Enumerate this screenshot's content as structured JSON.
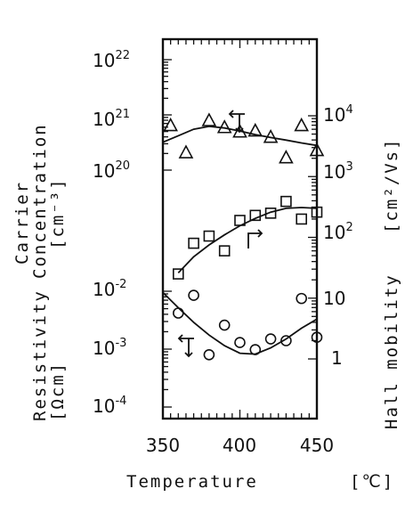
{
  "chart_data": {
    "type": "scatter",
    "x": {
      "label": "Temperature",
      "unit": "[℃]",
      "range": [
        350,
        450
      ],
      "ticks": [
        "350",
        "400",
        "450"
      ]
    },
    "y_left": {
      "scale": "log",
      "label_lines": [
        "Carrier",
        "Concentration",
        "[cm⁻³]",
        "Resistivity",
        "[Ωcm]"
      ],
      "upper_panel": {
        "quantity": "Carrier Concentration",
        "range": [
          1e+20,
          1e+22
        ],
        "tick_bases": [
          "10",
          "10",
          "10"
        ],
        "tick_exps": [
          "20",
          "21",
          "22"
        ]
      },
      "lower_panel": {
        "quantity": "Resistivity",
        "range": [
          0.0001,
          0.01
        ],
        "tick_bases": [
          "10",
          "10",
          "10"
        ],
        "tick_exps": [
          "-2",
          "-3",
          "-4"
        ]
      }
    },
    "y_right": {
      "scale": "log",
      "label": "Hall mobility",
      "unit": "[cm²/Vs]",
      "range": [
        0.5,
        40000
      ],
      "tick_labels": [
        "1",
        "10"
      ],
      "tick_bases": [
        "10",
        "10",
        "10"
      ],
      "tick_exps": [
        "2",
        "3",
        "4"
      ]
    },
    "series": [
      {
        "quantity": "Carrier Concentration",
        "marker": "triangle",
        "axis": "left",
        "points": [
          [
            355,
            6.5e+20
          ],
          [
            365,
            2.1e+20
          ],
          [
            380,
            8e+20
          ],
          [
            390,
            6e+20
          ],
          [
            400,
            5e+20
          ],
          [
            410,
            5.2e+20
          ],
          [
            420,
            4e+20
          ],
          [
            430,
            1.7e+20
          ],
          [
            440,
            6.5e+20
          ],
          [
            450,
            2.3e+20
          ]
        ],
        "fit": [
          [
            350,
            3.2e+20
          ],
          [
            360,
            4.2e+20
          ],
          [
            370,
            5.5e+20
          ],
          [
            380,
            6.2e+20
          ],
          [
            390,
            5.8e+20
          ],
          [
            400,
            5.1e+20
          ],
          [
            410,
            4.4e+20
          ],
          [
            420,
            3.9e+20
          ],
          [
            430,
            3.5e+20
          ],
          [
            440,
            3.1e+20
          ],
          [
            450,
            2.8e+20
          ]
        ]
      },
      {
        "quantity": "Hall mobility",
        "marker": "square",
        "axis": "right",
        "points": [
          [
            360,
            25
          ],
          [
            370,
            80
          ],
          [
            380,
            105
          ],
          [
            390,
            60
          ],
          [
            400,
            190
          ],
          [
            410,
            230
          ],
          [
            420,
            250
          ],
          [
            430,
            390
          ],
          [
            440,
            200
          ],
          [
            450,
            260
          ]
        ],
        "fit": [
          [
            360,
            26
          ],
          [
            370,
            48
          ],
          [
            380,
            75
          ],
          [
            390,
            110
          ],
          [
            400,
            155
          ],
          [
            410,
            205
          ],
          [
            420,
            260
          ],
          [
            430,
            300
          ],
          [
            440,
            310
          ],
          [
            450,
            300
          ]
        ]
      },
      {
        "quantity": "Resistivity",
        "marker": "circle",
        "axis": "left",
        "points": [
          [
            360,
            0.0042
          ],
          [
            370,
            0.0085
          ],
          [
            380,
            0.0008
          ],
          [
            390,
            0.0026
          ],
          [
            400,
            0.0013
          ],
          [
            410,
            0.00098
          ],
          [
            420,
            0.0015
          ],
          [
            430,
            0.0014
          ],
          [
            440,
            0.0075
          ],
          [
            450,
            0.0016
          ]
        ],
        "fit": [
          [
            350,
            0.0095
          ],
          [
            360,
            0.0052
          ],
          [
            370,
            0.0029
          ],
          [
            380,
            0.00175
          ],
          [
            390,
            0.00115
          ],
          [
            400,
            0.00085
          ],
          [
            410,
            0.00082
          ],
          [
            420,
            0.00105
          ],
          [
            430,
            0.0015
          ],
          [
            440,
            0.0023
          ],
          [
            450,
            0.0033
          ]
        ]
      }
    ]
  }
}
